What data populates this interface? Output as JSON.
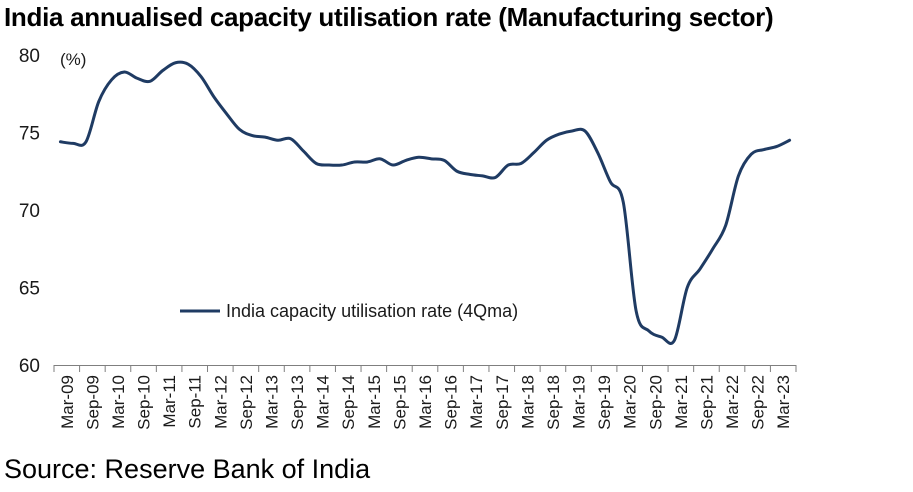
{
  "chart_data": {
    "type": "line",
    "title": "India annualised capacity utilisation rate (Manufacturing sector)",
    "source": "Source: Reserve Bank of India",
    "ylabel": "(%)",
    "xlabel": "",
    "ylim": [
      60,
      80
    ],
    "yticks": [
      "80",
      "75",
      "70",
      "65",
      "60"
    ],
    "grid": false,
    "legend_position": "lower-left",
    "line_color": "#1f3b63",
    "categories": [
      "Mar-09",
      "Sep-09",
      "Mar-10",
      "Sep-10",
      "Mar-11",
      "Sep-11",
      "Mar-12",
      "Sep-12",
      "Mar-13",
      "Sep-13",
      "Mar-14",
      "Sep-14",
      "Mar-15",
      "Sep-15",
      "Mar-16",
      "Sep-16",
      "Mar-17",
      "Sep-17",
      "Mar-18",
      "Sep-18",
      "Mar-19",
      "Sep-19",
      "Mar-20",
      "Sep-20",
      "Mar-21",
      "Sep-21",
      "Mar-22",
      "Sep-22",
      "Mar-23"
    ],
    "series": [
      {
        "name": "India capacity utilisation rate (4Qma)",
        "x": [
          "Mar-09",
          "Jun-09",
          "Sep-09",
          "Dec-09",
          "Mar-10",
          "Jun-10",
          "Sep-10",
          "Dec-10",
          "Mar-11",
          "Jun-11",
          "Sep-11",
          "Dec-11",
          "Mar-12",
          "Jun-12",
          "Sep-12",
          "Dec-12",
          "Mar-13",
          "Jun-13",
          "Sep-13",
          "Dec-13",
          "Mar-14",
          "Jun-14",
          "Sep-14",
          "Dec-14",
          "Mar-15",
          "Jun-15",
          "Sep-15",
          "Dec-15",
          "Mar-16",
          "Jun-16",
          "Sep-16",
          "Dec-16",
          "Mar-17",
          "Jun-17",
          "Sep-17",
          "Dec-17",
          "Mar-18",
          "Jun-18",
          "Sep-18",
          "Dec-18",
          "Mar-19",
          "Jun-19",
          "Sep-19",
          "Dec-19",
          "Mar-20",
          "Jun-20",
          "Sep-20",
          "Dec-20",
          "Mar-21",
          "Jun-21",
          "Sep-21",
          "Dec-21",
          "Mar-22",
          "Jun-22",
          "Sep-22",
          "Dec-22",
          "Mar-23",
          "Jun-23"
        ],
        "values": [
          74.4,
          74.3,
          74.4,
          77.0,
          78.4,
          78.9,
          78.5,
          78.3,
          79.0,
          79.5,
          79.4,
          78.6,
          77.3,
          76.2,
          75.2,
          74.8,
          74.7,
          74.5,
          74.6,
          73.8,
          73.0,
          72.9,
          72.9,
          73.1,
          73.1,
          73.3,
          72.9,
          73.2,
          73.4,
          73.3,
          73.2,
          72.5,
          72.3,
          72.2,
          72.1,
          72.9,
          73.0,
          73.7,
          74.5,
          74.9,
          75.1,
          75.1,
          73.7,
          71.8,
          70.5,
          63.5,
          62.2,
          61.8,
          61.6,
          65.0,
          66.2,
          67.5,
          69.0,
          72.2,
          73.6,
          73.9,
          74.1,
          74.5
        ]
      }
    ]
  }
}
